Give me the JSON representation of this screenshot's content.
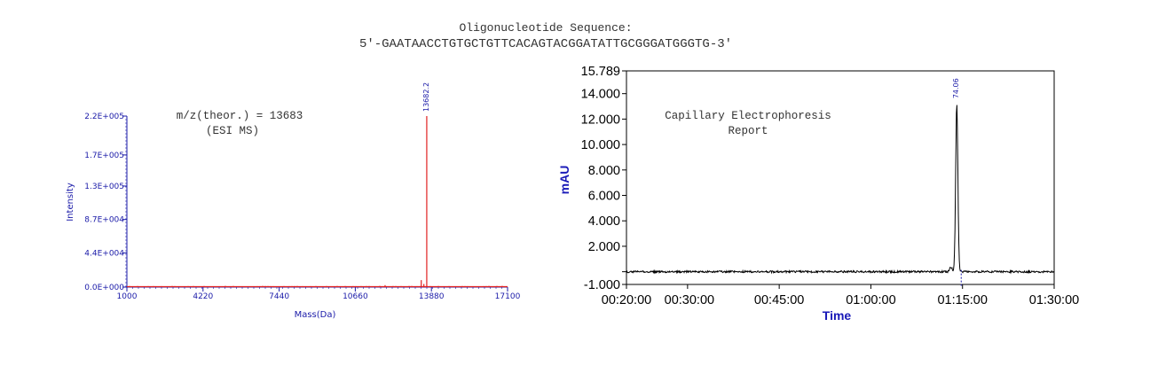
{
  "header": {
    "title": "Oligonucleotide Sequence:",
    "sequence": "5'-GAATAACCTGTGCTGTTCACAGTACGGATATTGCGGGATGGGTG-3'"
  },
  "chart_data": [
    {
      "type": "line",
      "name": "ESI MS",
      "annotation_line1": "m/z(theor.) = 13683",
      "annotation_line2": "(ESI MS)",
      "xlabel": "Mass(Da)",
      "ylabel": "Intensity",
      "xlim": [
        1000,
        17100
      ],
      "ylim": [
        0,
        220000
      ],
      "x_ticks": [
        "1000",
        "4220",
        "7440",
        "10660",
        "13880",
        "17100"
      ],
      "x_tick_values": [
        1000,
        4220,
        7440,
        10660,
        13880,
        17100
      ],
      "y_ticks": [
        "0.0E+000",
        "4.4E+004",
        "8.7E+004",
        "1.3E+005",
        "1.7E+005",
        "2.2E+005"
      ],
      "y_tick_values": [
        0,
        44000,
        87000,
        130000,
        170000,
        220000
      ],
      "peak_label": "13682.2",
      "line_color": "#e02020",
      "peaks": [
        {
          "x": 11920,
          "y": 2500
        },
        {
          "x": 13450,
          "y": 9000
        },
        {
          "x": 13560,
          "y": 4000
        },
        {
          "x": 13682.2,
          "y": 220000
        }
      ]
    },
    {
      "type": "line",
      "name": "Capillary Electrophoresis",
      "annotation_line1": "Capillary Electrophoresis",
      "annotation_line2": "Report",
      "xlabel": "Time",
      "ylabel": "mAU",
      "ylim": [
        -1.0,
        15.789
      ],
      "y_ticks": [
        "15.789",
        "14.000",
        "12.000",
        "10.000",
        "8.000",
        "6.000",
        "4.000",
        "2.000",
        "-1.000"
      ],
      "y_tick_values": [
        15.789,
        14,
        12,
        10,
        8,
        6,
        4,
        2,
        -1
      ],
      "x_ticks": [
        "00:20:00",
        "00:30:00",
        "00:45:00",
        "01:00:00",
        "01:15:00",
        "01:30:00"
      ],
      "x_tick_values_min": [
        20,
        30,
        45,
        60,
        75,
        90
      ],
      "xlim_min": [
        20,
        90
      ],
      "peak_label": "74.06",
      "peak_time_min": 74.06,
      "peak_height": 13.2,
      "baseline": 0.0,
      "line_color": "#000000"
    }
  ]
}
